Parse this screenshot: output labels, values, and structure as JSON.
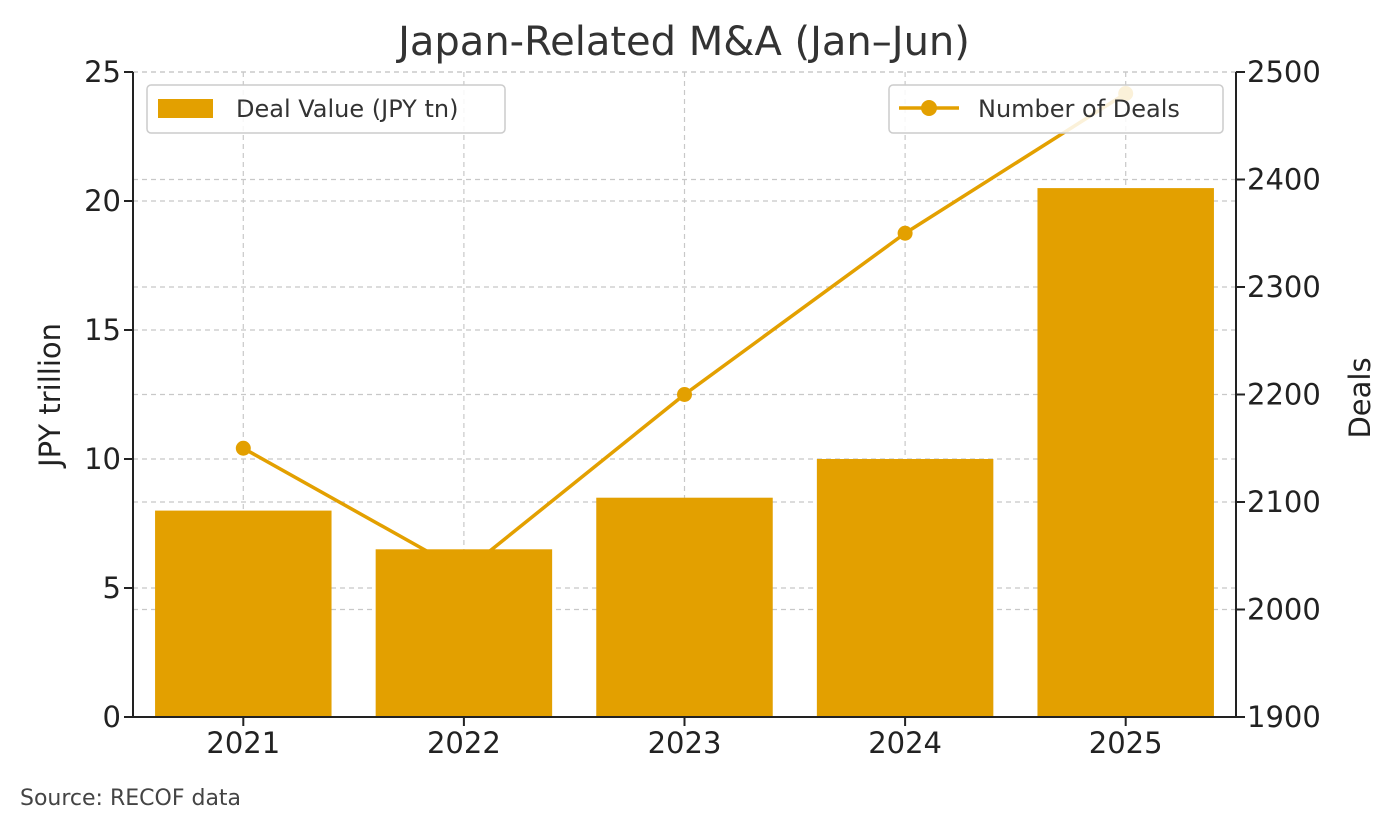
{
  "chart_data": {
    "type": "bar",
    "title": "Japan-Related M&A (Jan–Jun)",
    "categories": [
      "2021",
      "2022",
      "2023",
      "2024",
      "2025"
    ],
    "series": [
      {
        "name": "Deal Value (JPY tn)",
        "type": "bar",
        "axis": "left",
        "values": [
          8.0,
          6.5,
          8.5,
          10.0,
          20.5
        ],
        "color": "#E3A000"
      },
      {
        "name": "Number of Deals",
        "type": "line",
        "axis": "right",
        "values": [
          2150,
          2035,
          2200,
          2350,
          2480
        ],
        "color": "#E3A000",
        "marker": "circle"
      }
    ],
    "ylabel": "JPY trillion",
    "ylim": [
      0,
      25
    ],
    "yticks": [
      "0",
      "5",
      "10",
      "15",
      "20",
      "25"
    ],
    "y2label": "Deals",
    "y2lim": [
      1900,
      2500
    ],
    "y2ticks": [
      "1900",
      "2000",
      "2100",
      "2200",
      "2300",
      "2400",
      "2500"
    ],
    "grid": true,
    "legend_bar_position": "top-left",
    "legend_line_position": "top-right"
  },
  "source_note": "Source: RECOF data"
}
